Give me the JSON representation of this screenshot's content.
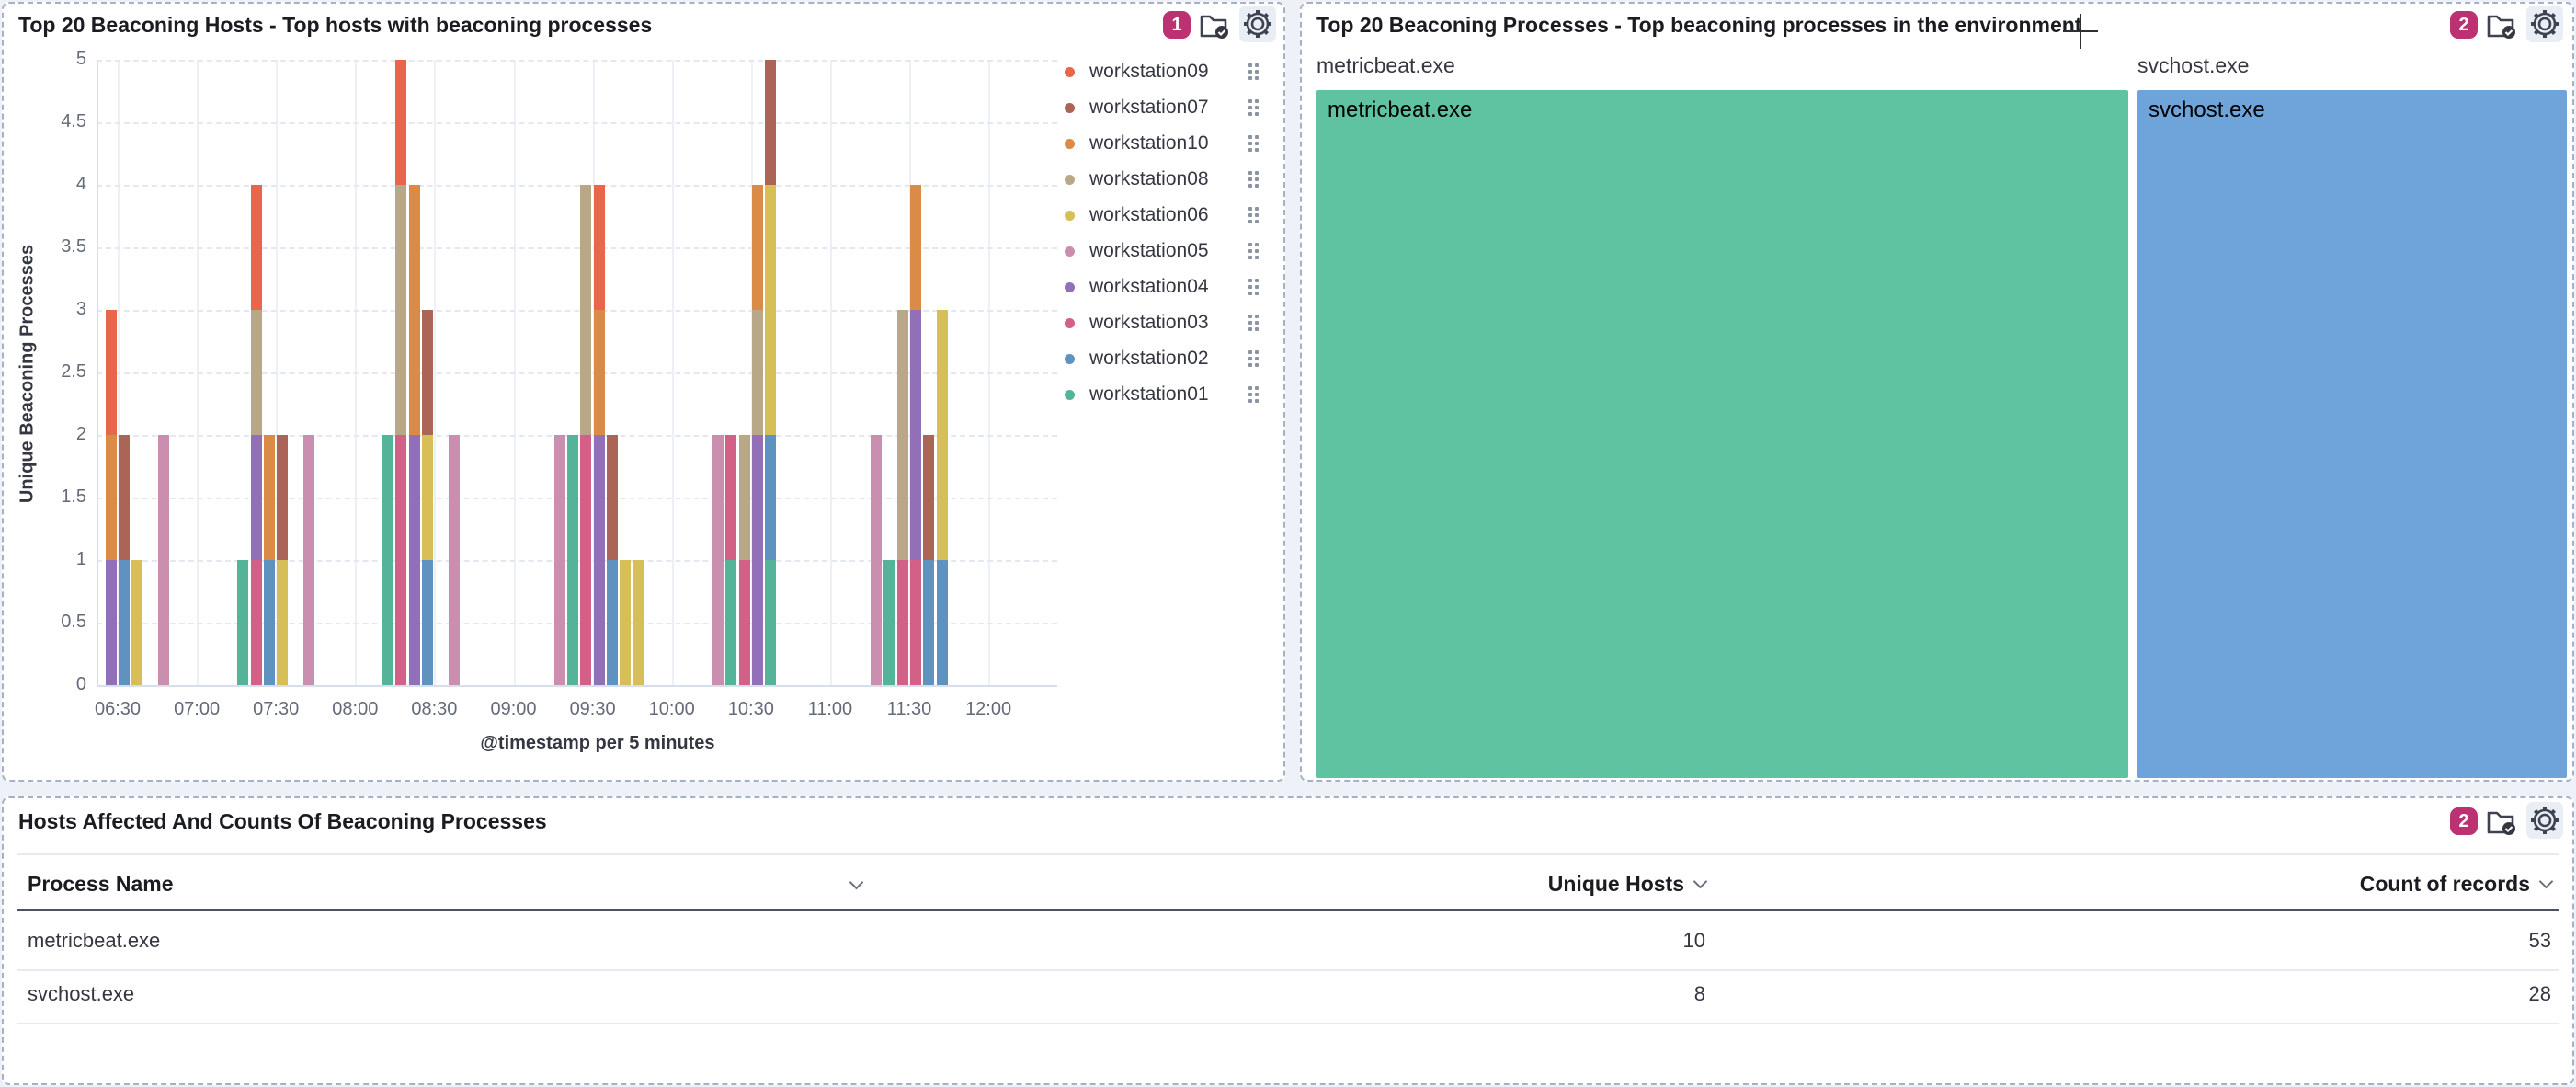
{
  "accent_colors": {
    "panel_badge": "#bc3171",
    "panel_border_dashed": "#a5b1c6",
    "icon_color": "#3d4350"
  },
  "panels": {
    "hosts_chart": {
      "title": "Top 20 Beaconing Hosts - Top hosts with beaconing processes",
      "badge": "1",
      "icon_folder": "folder-check-icon",
      "icon_settings": "gear-icon",
      "chart_data": {
        "type": "bar",
        "stacked": true,
        "title": "Top 20 Beaconing Hosts - Top hosts with beaconing processes",
        "xlabel": "@timestamp per 5 minutes",
        "ylabel": "Unique Beaconing Processes",
        "ylim": [
          0,
          5
        ],
        "grid": true,
        "legend_position": "right",
        "y_tick_labels": [
          "0",
          "0.5",
          "1",
          "1.5",
          "2",
          "2.5",
          "3",
          "3.5",
          "4",
          "4.5",
          "5"
        ],
        "x_tick_labels": [
          "06:30",
          "07:00",
          "07:30",
          "08:00",
          "08:30",
          "09:00",
          "09:30",
          "10:00",
          "10:30",
          "11:00",
          "11:30",
          "12:00"
        ],
        "legend_order": [
          "workstation09",
          "workstation07",
          "workstation10",
          "workstation08",
          "workstation06",
          "workstation05",
          "workstation04",
          "workstation03",
          "workstation02",
          "workstation01"
        ],
        "series_colors": {
          "workstation01": "#54B399",
          "workstation02": "#6092C0",
          "workstation03": "#D36086",
          "workstation04": "#9170B8",
          "workstation05": "#CA8EAE",
          "workstation06": "#D6BF57",
          "workstation07": "#AA6556",
          "workstation08": "#B9A888",
          "workstation09": "#E7664C",
          "workstation10": "#DA8B45"
        },
        "bars": [
          {
            "time": "06:25",
            "t": 25,
            "stack": [
              [
                "workstation04",
                1
              ],
              [
                "workstation10",
                1
              ],
              [
                "workstation09",
                1
              ]
            ]
          },
          {
            "time": "06:30",
            "t": 30,
            "stack": [
              [
                "workstation02",
                1
              ],
              [
                "workstation07",
                1
              ]
            ]
          },
          {
            "time": "06:35",
            "t": 35,
            "stack": [
              [
                "workstation06",
                1
              ]
            ]
          },
          {
            "time": "06:45",
            "t": 45,
            "stack": [
              [
                "workstation05",
                2
              ]
            ]
          },
          {
            "time": "07:15",
            "t": 75,
            "stack": [
              [
                "workstation01",
                1
              ]
            ]
          },
          {
            "time": "07:20",
            "t": 80,
            "stack": [
              [
                "workstation03",
                1
              ],
              [
                "workstation04",
                1
              ],
              [
                "workstation08",
                1
              ],
              [
                "workstation09",
                1
              ]
            ]
          },
          {
            "time": "07:25",
            "t": 85,
            "stack": [
              [
                "workstation02",
                1
              ],
              [
                "workstation10",
                1
              ]
            ]
          },
          {
            "time": "07:30",
            "t": 90,
            "stack": [
              [
                "workstation06",
                1
              ],
              [
                "workstation07",
                1
              ]
            ]
          },
          {
            "time": "07:40",
            "t": 100,
            "stack": [
              [
                "workstation05",
                2
              ]
            ]
          },
          {
            "time": "08:10",
            "t": 130,
            "stack": [
              [
                "workstation01",
                2
              ]
            ]
          },
          {
            "time": "08:15",
            "t": 135,
            "stack": [
              [
                "workstation03",
                2
              ],
              [
                "workstation08",
                2
              ],
              [
                "workstation09",
                1
              ]
            ]
          },
          {
            "time": "08:20",
            "t": 140,
            "stack": [
              [
                "workstation04",
                2
              ],
              [
                "workstation10",
                2
              ]
            ]
          },
          {
            "time": "08:25",
            "t": 145,
            "stack": [
              [
                "workstation02",
                1
              ],
              [
                "workstation06",
                1
              ],
              [
                "workstation07",
                1
              ]
            ]
          },
          {
            "time": "08:35",
            "t": 155,
            "stack": [
              [
                "workstation05",
                2
              ]
            ]
          },
          {
            "time": "09:15",
            "t": 195,
            "stack": [
              [
                "workstation05",
                2
              ]
            ]
          },
          {
            "time": "09:20",
            "t": 200,
            "stack": [
              [
                "workstation01",
                2
              ]
            ]
          },
          {
            "time": "09:25",
            "t": 205,
            "stack": [
              [
                "workstation03",
                2
              ],
              [
                "workstation08",
                2
              ]
            ]
          },
          {
            "time": "09:30",
            "t": 210,
            "stack": [
              [
                "workstation04",
                2
              ],
              [
                "workstation10",
                1
              ],
              [
                "workstation09",
                1
              ]
            ]
          },
          {
            "time": "09:35",
            "t": 215,
            "stack": [
              [
                "workstation02",
                1
              ],
              [
                "workstation07",
                1
              ]
            ]
          },
          {
            "time": "09:40",
            "t": 220,
            "stack": [
              [
                "workstation06",
                1
              ]
            ]
          },
          {
            "time": "09:45",
            "t": 225,
            "stack": [
              [
                "workstation06",
                1
              ]
            ]
          },
          {
            "time": "10:15",
            "t": 255,
            "stack": [
              [
                "workstation05",
                2
              ]
            ]
          },
          {
            "time": "10:20",
            "t": 260,
            "stack": [
              [
                "workstation01",
                1
              ],
              [
                "workstation03",
                1
              ]
            ]
          },
          {
            "time": "10:25",
            "t": 265,
            "stack": [
              [
                "workstation03",
                1
              ],
              [
                "workstation08",
                1
              ]
            ]
          },
          {
            "time": "10:30",
            "t": 270,
            "stack": [
              [
                "workstation04",
                2
              ],
              [
                "workstation08",
                1
              ],
              [
                "workstation10",
                1
              ]
            ]
          },
          {
            "time": "10:35",
            "t": 275,
            "stack": [
              [
                "workstation01",
                1
              ],
              [
                "workstation02",
                1
              ],
              [
                "workstation06",
                2
              ],
              [
                "workstation07",
                1
              ]
            ]
          },
          {
            "time": "11:15",
            "t": 315,
            "stack": [
              [
                "workstation05",
                2
              ]
            ]
          },
          {
            "time": "11:20",
            "t": 320,
            "stack": [
              [
                "workstation01",
                1
              ]
            ]
          },
          {
            "time": "11:25",
            "t": 325,
            "stack": [
              [
                "workstation03",
                1
              ],
              [
                "workstation08",
                2
              ]
            ]
          },
          {
            "time": "11:30",
            "t": 330,
            "stack": [
              [
                "workstation03",
                1
              ],
              [
                "workstation04",
                2
              ],
              [
                "workstation10",
                1
              ]
            ]
          },
          {
            "time": "11:35",
            "t": 335,
            "stack": [
              [
                "workstation02",
                1
              ],
              [
                "workstation07",
                1
              ]
            ]
          },
          {
            "time": "11:40",
            "t": 340,
            "stack": [
              [
                "workstation02",
                1
              ],
              [
                "workstation06",
                2
              ]
            ]
          }
        ]
      }
    },
    "processes_treemap": {
      "title": "Top 20 Beaconing Processes - Top beaconing processes in the environment",
      "badge": "2",
      "icon_folder": "folder-check-icon",
      "icon_settings": "gear-icon",
      "chart_data": {
        "type": "treemap",
        "items": [
          {
            "label": "metricbeat.exe",
            "count_of_records": 53,
            "color": "#5FC3A1"
          },
          {
            "label": "svchost.exe",
            "count_of_records": 28,
            "color": "#6FA4DA"
          }
        ]
      }
    },
    "table": {
      "title": "Hosts Affected And Counts Of Beaconing Processes",
      "badge": "2",
      "icon_folder": "folder-check-icon",
      "icon_settings": "gear-icon",
      "columns": [
        "Process Name",
        "Unique Hosts",
        "Count of records"
      ],
      "rows": [
        [
          "metricbeat.exe",
          "10",
          "53"
        ],
        [
          "svchost.exe",
          "8",
          "28"
        ]
      ]
    }
  }
}
